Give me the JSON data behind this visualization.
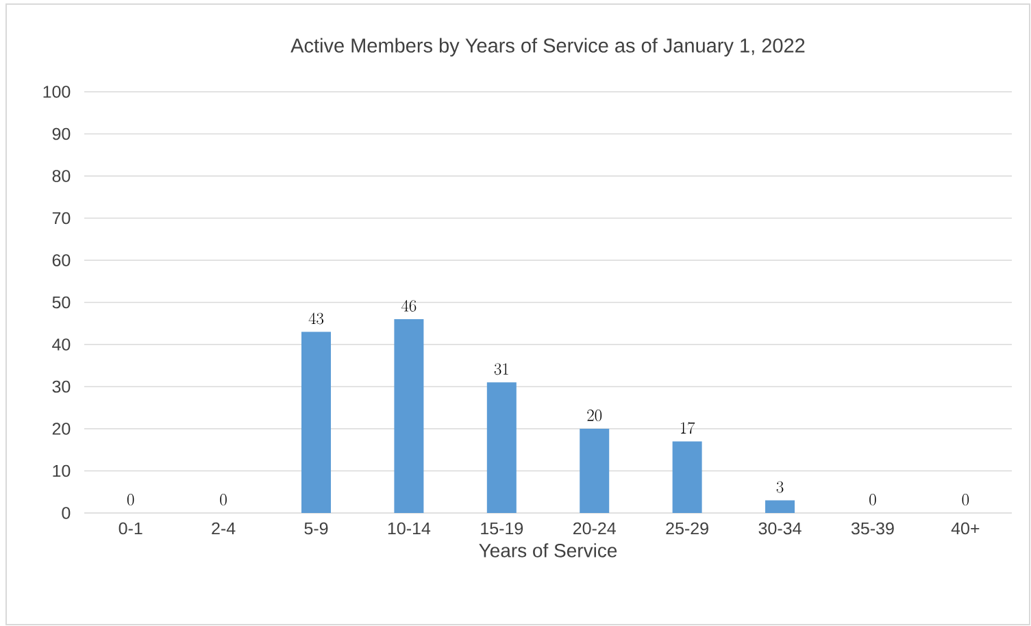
{
  "chart_data": {
    "type": "bar",
    "title": "Active Members by Years of Service as of January 1, 2022",
    "xlabel": "Years of Service",
    "categories": [
      "0-1",
      "2-4",
      "5-9",
      "10-14",
      "15-19",
      "20-24",
      "25-29",
      "30-34",
      "35-39",
      "40+"
    ],
    "values": [
      0,
      0,
      43,
      46,
      31,
      20,
      17,
      3,
      0,
      0
    ],
    "color": "#5b9bd5",
    "ylim": [
      0,
      100
    ],
    "yticks": [
      0,
      10,
      20,
      30,
      40,
      50,
      60,
      70,
      80,
      90,
      100
    ],
    "grid": "y",
    "data_labels": true
  }
}
